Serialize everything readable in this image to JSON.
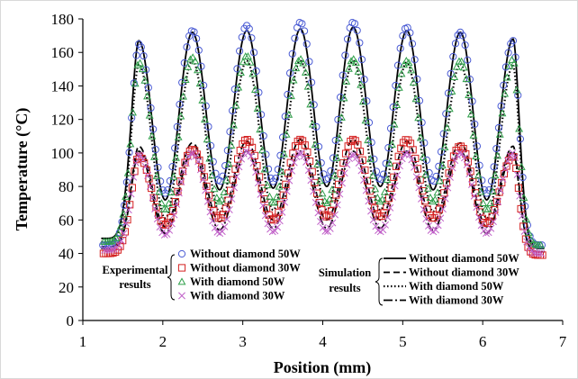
{
  "chart_data": {
    "type": "scatter",
    "xlabel": "Position (mm)",
    "ylabel": "Temperature  (°C)",
    "xlim": [
      1,
      7
    ],
    "ylim": [
      0,
      180
    ],
    "x_ticks": [
      "1",
      "2",
      "3",
      "4",
      "5",
      "6",
      "7"
    ],
    "y_ticks": [
      "0",
      "20",
      "40",
      "60",
      "80",
      "100",
      "120",
      "140",
      "160",
      "180"
    ],
    "grid": false,
    "x_range_measured": [
      1.25,
      6.75
    ],
    "peak_positions": [
      1.7,
      2.37,
      3.05,
      3.72,
      4.38,
      5.05,
      5.72,
      6.38
    ],
    "trough_positions": [
      2.03,
      2.71,
      3.38,
      4.05,
      4.72,
      5.38,
      6.05
    ],
    "legend_groups": {
      "experimental": "Experimental results",
      "simulation": "Simulation results"
    },
    "experimental_series": [
      {
        "name": "Without diamond 50W",
        "marker": "circle",
        "color": "#4a5bd4",
        "peaks": [
          165,
          173,
          176,
          178,
          178,
          175,
          172,
          167
        ],
        "troughs": [
          76,
          83,
          83,
          84,
          84,
          83,
          76
        ],
        "ends": [
          45,
          45
        ]
      },
      {
        "name": "Without diamond 30W",
        "marker": "square",
        "color": "#d42020",
        "peaks": [
          98,
          102,
          108,
          108,
          108,
          108,
          104,
          98
        ],
        "troughs": [
          57,
          61,
          60,
          62,
          62,
          61,
          58
        ],
        "ends": [
          40,
          39
        ]
      },
      {
        "name": "With diamond 50W",
        "marker": "triangle",
        "color": "#2fa04a",
        "peaks": [
          154,
          157,
          158,
          156,
          156,
          155,
          155,
          156
        ],
        "troughs": [
          66,
          71,
          70,
          70,
          71,
          71,
          66
        ],
        "ends": [
          47,
          45
        ]
      },
      {
        "name": "With diamond 30W",
        "marker": "x",
        "color": "#c060c8",
        "peaks": [
          99,
          100,
          101,
          100,
          99,
          100,
          100,
          100
        ],
        "troughs": [
          51,
          52,
          53,
          53,
          53,
          53,
          52
        ],
        "ends": [
          42,
          40
        ]
      }
    ],
    "simulation_series": [
      {
        "name": "Without diamond 50W",
        "style": "solid",
        "peaks": [
          167,
          172,
          173,
          174,
          175,
          173,
          172,
          168
        ],
        "troughs": [
          72,
          78,
          79,
          80,
          80,
          78,
          72
        ],
        "ends": [
          49,
          43
        ]
      },
      {
        "name": "Without diamond 30W",
        "style": "dashed",
        "peaks": [
          104,
          106,
          107,
          108,
          108,
          107,
          106,
          104
        ],
        "troughs": [
          56,
          59,
          60,
          60,
          60,
          59,
          56
        ],
        "ends": [
          44,
          41
        ]
      },
      {
        "name": "With diamond 50W",
        "style": "dotted",
        "peaks": [
          153,
          155,
          155,
          155,
          155,
          154,
          153,
          152
        ],
        "troughs": [
          61,
          65,
          66,
          66,
          66,
          65,
          61
        ],
        "ends": [
          47,
          44
        ]
      },
      {
        "name": "With diamond 30W",
        "style": "dashdot",
        "peaks": [
          101,
          101,
          101,
          101,
          101,
          101,
          101,
          101
        ],
        "troughs": [
          52,
          54,
          55,
          55,
          55,
          54,
          52
        ],
        "ends": [
          43,
          41
        ]
      }
    ]
  }
}
